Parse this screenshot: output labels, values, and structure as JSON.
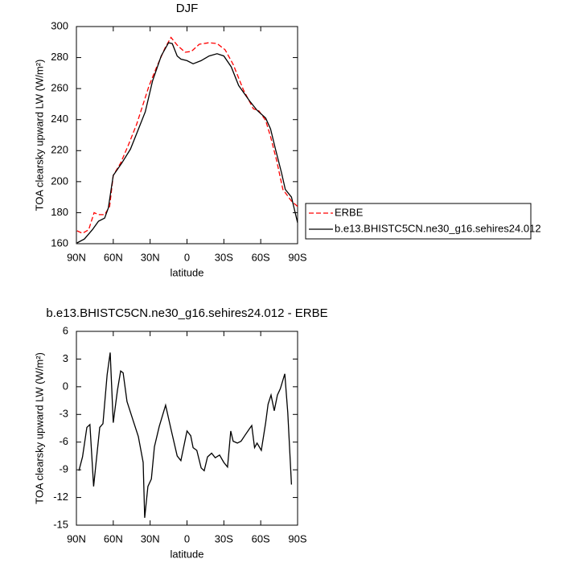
{
  "chart_data": [
    {
      "type": "line",
      "title": "DJF",
      "x_label": "latitude",
      "y_label": "TOA clearsky upward LW (W/m²)",
      "xlim": [
        90,
        -90
      ],
      "xticks": [
        {
          "value": 90,
          "label": "90N"
        },
        {
          "value": 60,
          "label": "60N"
        },
        {
          "value": 30,
          "label": "30N"
        },
        0,
        {
          "value": -30,
          "label": "30S"
        },
        {
          "value": -60,
          "label": "60S"
        },
        {
          "value": -90,
          "label": "90S"
        }
      ],
      "ylim": [
        160,
        300
      ],
      "yticks": [
        160,
        180,
        200,
        220,
        240,
        260,
        280,
        300
      ],
      "legend": "right",
      "series": [
        {
          "name": "ERBE",
          "color": "#ff0000",
          "dash": true,
          "x": [
            89.5,
            85,
            80,
            75.6,
            72,
            67,
            63,
            60,
            54,
            47.5,
            41,
            35.7,
            31,
            24.6,
            18,
            13,
            8,
            1.6,
            -3.6,
            -10,
            -18,
            -24.5,
            -31,
            -37.6,
            -46,
            -54,
            -58.5,
            -64,
            -68,
            -73,
            -78,
            -85,
            -90
          ],
          "values": [
            168.3,
            166.7,
            169,
            180,
            178.7,
            178.7,
            184,
            204,
            212,
            224,
            237,
            250,
            261.5,
            274,
            286,
            293,
            288,
            283.4,
            284,
            288.6,
            289.6,
            289,
            285,
            275.6,
            259,
            247,
            245.6,
            239.5,
            229,
            213.5,
            195,
            187.5,
            184
          ]
        },
        {
          "name": "b.e13.BHISTC5CN.ne30_g16.sehires24.012",
          "color": "#000000",
          "dash": false,
          "x": [
            89.5,
            83.5,
            77,
            72,
            67,
            64,
            60,
            53,
            46,
            41,
            34,
            28,
            21,
            15,
            12,
            8,
            5,
            0,
            -5,
            -11.5,
            -18,
            -24.5,
            -30,
            -36,
            -42,
            -51,
            -57,
            -64,
            -68,
            -72,
            -77,
            -80,
            -85,
            -90
          ],
          "values": [
            160.5,
            163,
            169,
            174.5,
            176.5,
            183,
            204,
            212,
            221,
            231,
            245,
            265,
            281,
            289.6,
            289,
            281,
            279,
            278,
            276,
            278,
            281,
            282.5,
            281,
            274,
            262,
            252,
            246,
            241,
            234,
            221,
            205.6,
            195,
            190,
            173.5
          ]
        }
      ]
    },
    {
      "type": "line",
      "title": "b.e13.BHISTC5CN.ne30_g16.sehires24.012 - ERBE",
      "x_label": "latitude",
      "y_label": "TOA clearsky upward LW (W/m²)",
      "xlim": [
        90,
        -90
      ],
      "xticks": [
        {
          "value": 90,
          "label": "90N"
        },
        {
          "value": 60,
          "label": "60N"
        },
        {
          "value": 30,
          "label": "30N"
        },
        0,
        {
          "value": -30,
          "label": "30S"
        },
        {
          "value": -60,
          "label": "60S"
        },
        {
          "value": -90,
          "label": "90S"
        }
      ],
      "ylim": [
        -15,
        6
      ],
      "yticks": [
        -15,
        -12,
        -9,
        -6,
        -3,
        0,
        3,
        6
      ],
      "series": [
        {
          "color": "#000000",
          "dash": false,
          "x": [
            88,
            85,
            81.5,
            79,
            76,
            71,
            68.4,
            65,
            62.5,
            60,
            56.6,
            54,
            52,
            48.8,
            44,
            39.6,
            35.7,
            34.4,
            31.8,
            29,
            26.5,
            22.6,
            17.4,
            13,
            8,
            5,
            0,
            -3,
            -5,
            -8,
            -11.5,
            -14,
            -16.7,
            -20,
            -23,
            -26.5,
            -30,
            -33,
            -35.6,
            -37.6,
            -41,
            -44,
            -47,
            -50.6,
            -52.7,
            -55,
            -57,
            -60.5,
            -64,
            -66,
            -68.4,
            -71,
            -73.6,
            -76,
            -79.6,
            -82,
            -85
          ],
          "values": [
            -9.1,
            -7.6,
            -4.4,
            -4.1,
            -10.8,
            -4.4,
            -4.0,
            1.3,
            3.7,
            -3.9,
            -0.4,
            1.7,
            1.5,
            -1.6,
            -3.6,
            -5.4,
            -8.2,
            -14.2,
            -10.8,
            -10,
            -6.5,
            -4.3,
            -2.0,
            -4.6,
            -7.5,
            -8,
            -4.8,
            -5.3,
            -6.6,
            -6.9,
            -8.8,
            -9.1,
            -7.6,
            -7.2,
            -7.7,
            -7.4,
            -8.2,
            -8.7,
            -4.8,
            -5.9,
            -6.1,
            -5.9,
            -5.3,
            -4.6,
            -4.2,
            -6.6,
            -6.1,
            -6.9,
            -3.9,
            -1.9,
            -0.9,
            -2.6,
            -0.9,
            -0.2,
            1.4,
            -2.8,
            -10.6
          ]
        }
      ]
    }
  ]
}
